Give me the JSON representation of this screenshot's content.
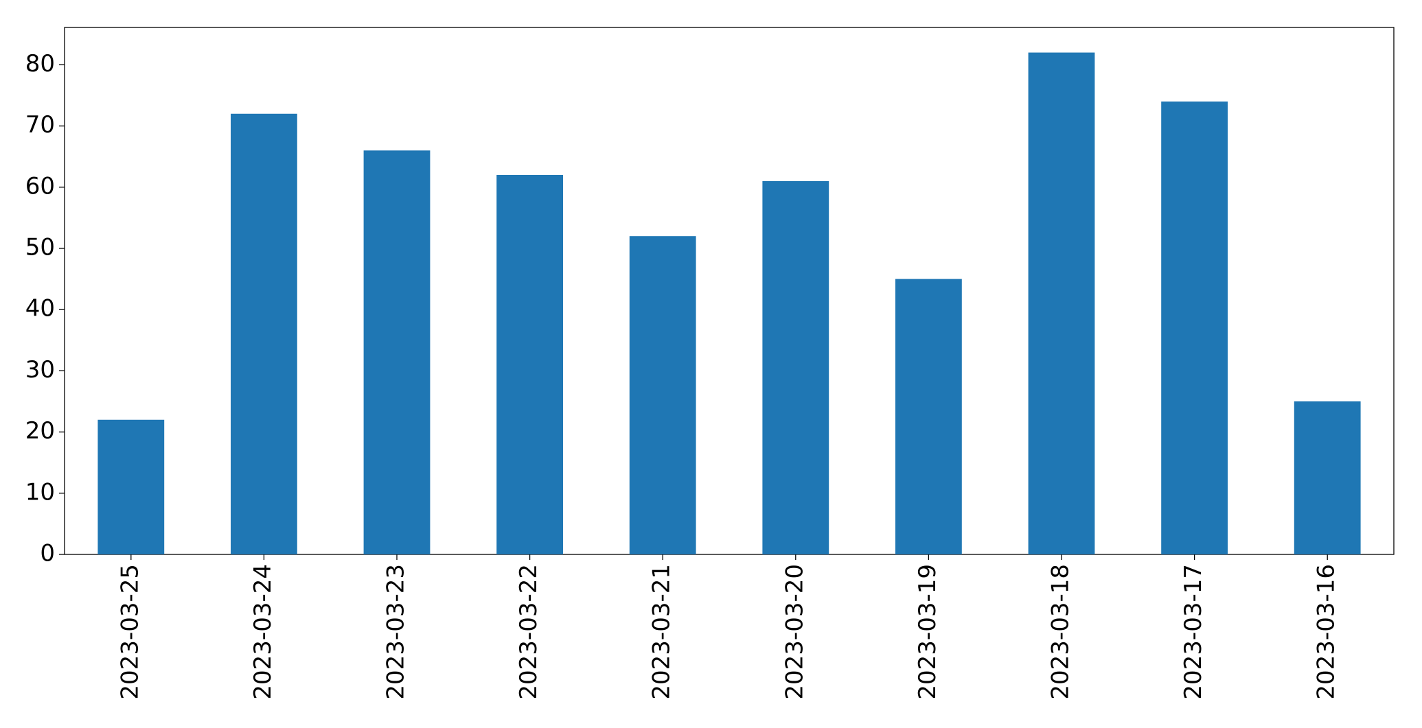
{
  "chart_data": {
    "type": "bar",
    "categories": [
      "2023-03-25",
      "2023-03-24",
      "2023-03-23",
      "2023-03-22",
      "2023-03-21",
      "2023-03-20",
      "2023-03-19",
      "2023-03-18",
      "2023-03-17",
      "2023-03-16"
    ],
    "values": [
      22,
      72,
      66,
      62,
      52,
      61,
      45,
      82,
      74,
      25
    ],
    "color": "#1f77b4",
    "ylim": [
      0,
      86.1
    ],
    "yticks": [
      0,
      10,
      20,
      30,
      40,
      50,
      60,
      70,
      80
    ],
    "grid": false
  }
}
